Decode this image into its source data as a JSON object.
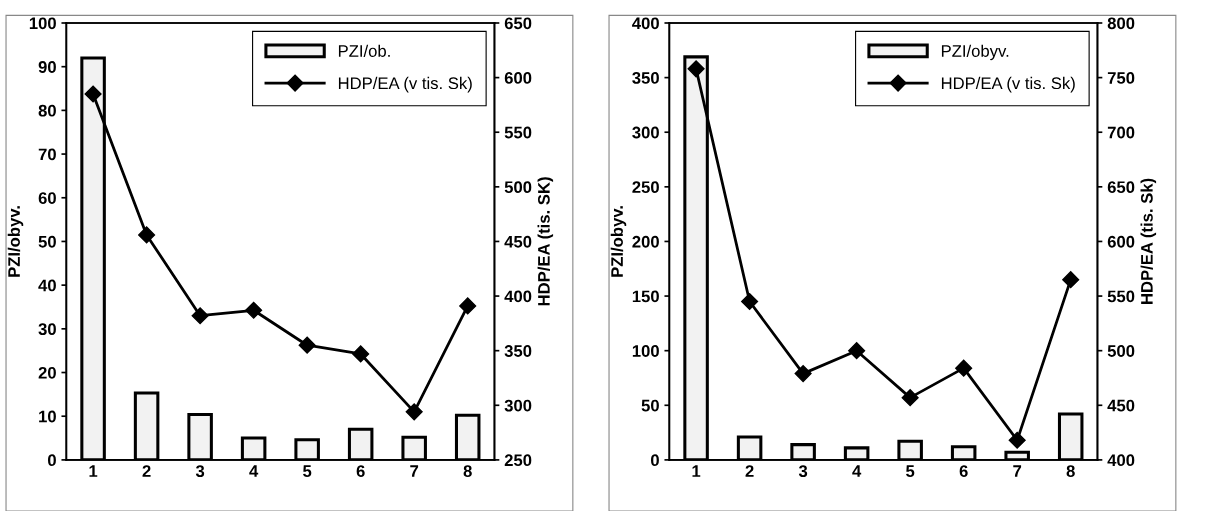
{
  "chart_data": [
    {
      "type": "bar",
      "categories": [
        "1",
        "2",
        "3",
        "4",
        "5",
        "6",
        "7",
        "8"
      ],
      "ylabel": "PZI/obyv.",
      "y2label": "HDP/EA (tis. SK)",
      "ylim": [
        0,
        100
      ],
      "yticks": [
        0,
        10,
        20,
        30,
        40,
        50,
        60,
        70,
        80,
        90,
        100
      ],
      "y2lim": [
        250,
        650
      ],
      "y2ticks": [
        250,
        300,
        350,
        400,
        450,
        500,
        550,
        600,
        650
      ],
      "legend": "top right",
      "grid": false,
      "series": [
        {
          "name": "PZI/ob.",
          "type": "bar",
          "color": "#f2f2f2",
          "values": [
            92,
            15.3,
            10.4,
            5,
            4.6,
            7,
            5.2,
            10.2
          ]
        },
        {
          "name": "HDP/EA (v tis. Sk)",
          "type": "line",
          "axis": "y2",
          "color": "#000000",
          "marker": "diamond",
          "line_style": "solid",
          "values": [
            585,
            456,
            382,
            387,
            355,
            347,
            294,
            391
          ]
        }
      ]
    },
    {
      "type": "bar",
      "categories": [
        "1",
        "2",
        "3",
        "4",
        "5",
        "6",
        "7",
        "8"
      ],
      "ylabel": "PZI/obyv.",
      "y2label": "HDP/EA (tis. Sk)",
      "ylim": [
        0,
        400
      ],
      "yticks": [
        0,
        50,
        100,
        150,
        200,
        250,
        300,
        350,
        400
      ],
      "y2lim": [
        400,
        800
      ],
      "y2ticks": [
        400,
        450,
        500,
        550,
        600,
        650,
        700,
        750,
        800
      ],
      "legend": "top right",
      "grid": false,
      "series": [
        {
          "name": "PZI/obyv.",
          "type": "bar",
          "color": "#f2f2f2",
          "values": [
            369,
            21,
            14,
            11,
            17,
            12,
            7,
            42
          ]
        },
        {
          "name": "HDP/EA (v tis. Sk)",
          "type": "line",
          "axis": "y2",
          "color": "#000000",
          "marker": "diamond",
          "line_style": "solid",
          "values": [
            758,
            545,
            479,
            500,
            457,
            484,
            418,
            565
          ]
        }
      ]
    }
  ]
}
